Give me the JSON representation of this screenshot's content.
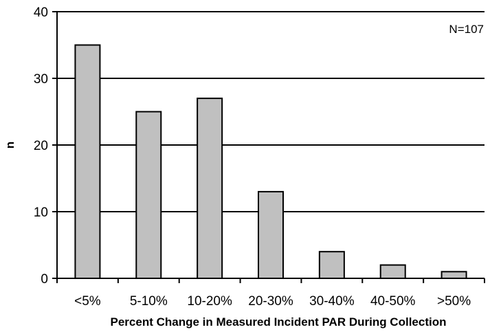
{
  "chart_data": {
    "type": "bar",
    "categories": [
      "<5%",
      "5-10%",
      "10-20%",
      "20-30%",
      "30-40%",
      "40-50%",
      ">50%"
    ],
    "values": [
      35,
      25,
      27,
      13,
      4,
      2,
      1
    ],
    "xlabel": "Percent Change in Measured Incident PAR During Collection",
    "ylabel": "n",
    "ylim": [
      0,
      40
    ],
    "yticks": [
      0,
      10,
      20,
      30,
      40
    ],
    "annotation": "N=107",
    "grid": true,
    "bar_color": "#c0c0c0",
    "edge_color": "#000000"
  }
}
